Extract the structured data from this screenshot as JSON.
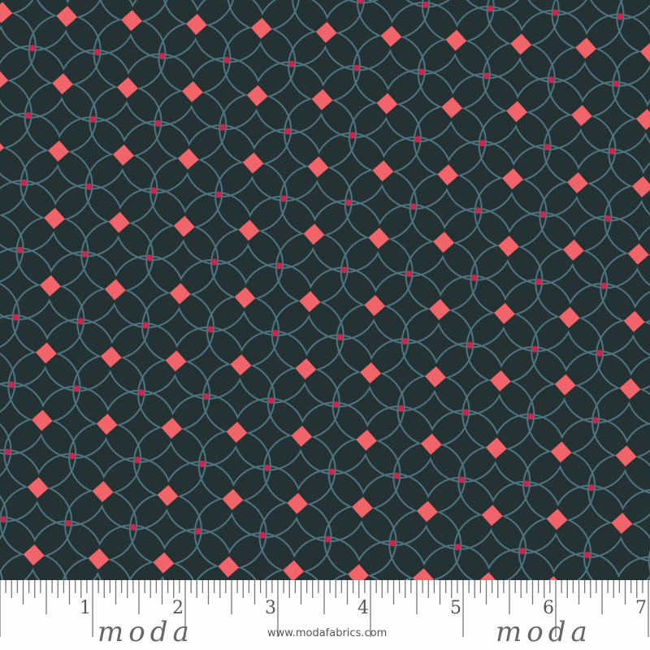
{
  "fabric": {
    "background_color": "#243234",
    "line_color": "#4f7580",
    "diamond_color": "#f0646a",
    "dot_color": "#c8284e"
  },
  "ruler": {
    "numbers": [
      "1",
      "2",
      "3",
      "4",
      "5",
      "6",
      "7"
    ],
    "logo_left": "moda",
    "logo_right": "moda",
    "url": "www.modafabrics.com"
  }
}
